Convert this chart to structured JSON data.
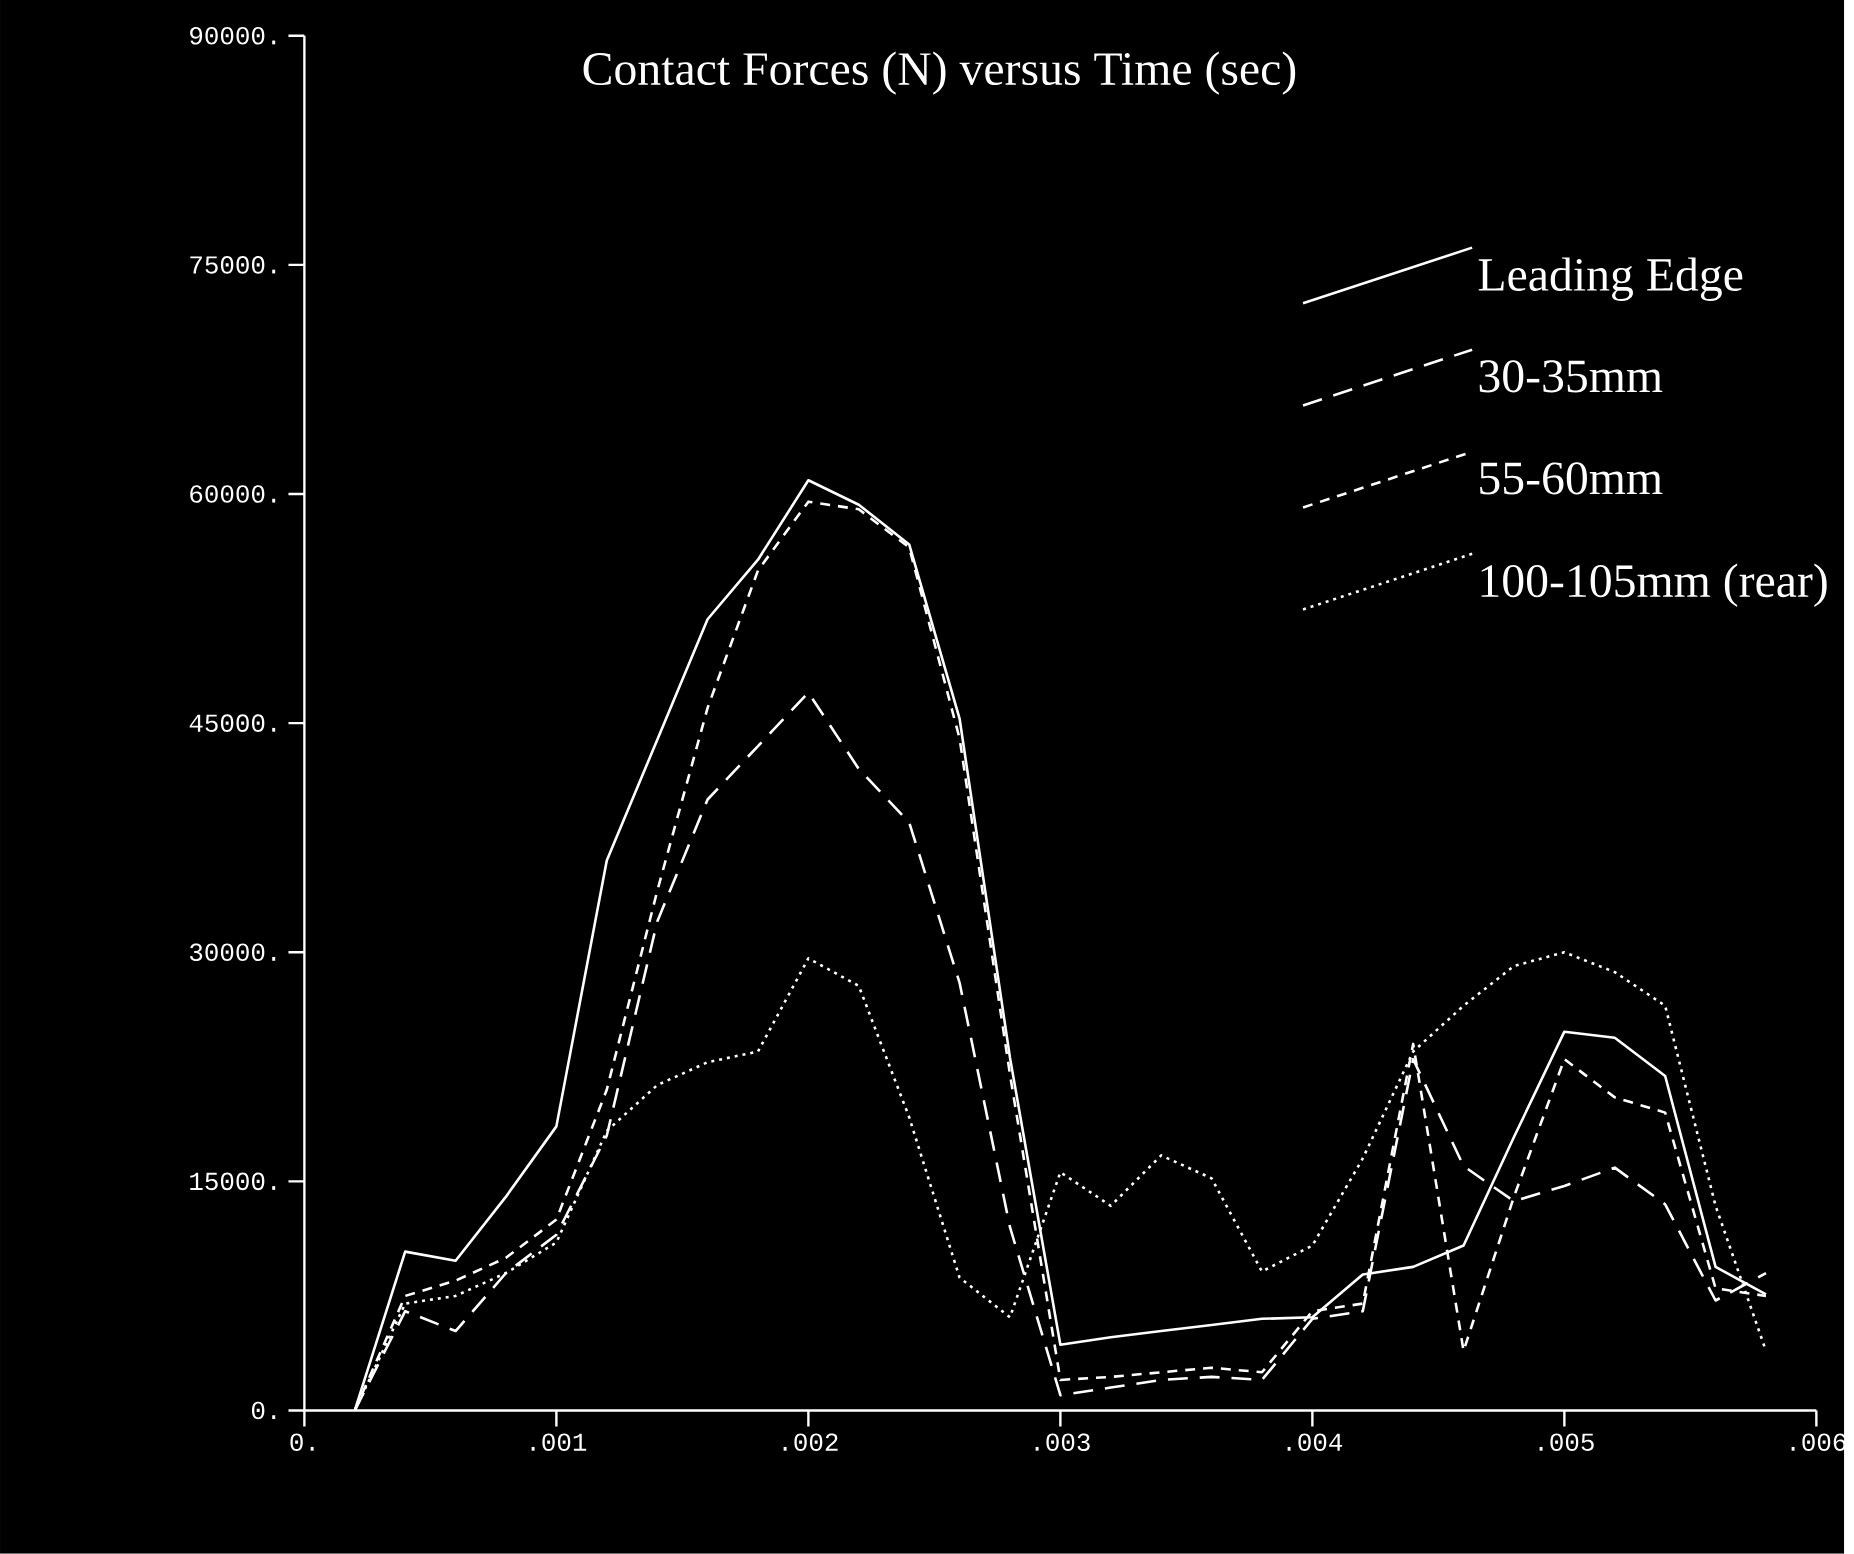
{
  "chart_data": {
    "type": "line",
    "title": "Contact Forces (N) versus Time (sec)",
    "x": [
      0.0002,
      0.0004,
      0.0006,
      0.0008,
      0.001,
      0.0012,
      0.0014,
      0.0016,
      0.0018,
      0.002,
      0.0022,
      0.0024,
      0.0026,
      0.0028,
      0.003,
      0.0032,
      0.0034,
      0.0036,
      0.0038,
      0.004,
      0.0042,
      0.0044,
      0.0046,
      0.0048,
      0.005,
      0.0052,
      0.0054,
      0.0056,
      0.0058
    ],
    "series": [
      {
        "name": "Leading Edge",
        "color": "#ffffff",
        "line_style": "solid",
        "values": [
          0,
          10400,
          9800,
          14000,
          18600,
          36000,
          43900,
          51800,
          55700,
          60900,
          59300,
          56700,
          45300,
          23100,
          4300,
          4800,
          5200,
          5600,
          6000,
          6100,
          8900,
          9400,
          10800,
          17900,
          24800,
          24400,
          21900,
          9400,
          7600
        ]
      },
      {
        "name": "30-35mm",
        "color": "#ffffff",
        "line_style": "dashed",
        "values": [
          0,
          6500,
          5200,
          9000,
          11500,
          18000,
          32000,
          40000,
          43500,
          47000,
          42000,
          38500,
          28000,
          12000,
          1000,
          1500,
          2000,
          2200,
          2000,
          6000,
          6500,
          23000,
          16000,
          13700,
          14700,
          15900,
          13500,
          7200,
          9000
        ]
      },
      {
        "name": "55-60mm",
        "color": "#ffffff",
        "line_style": "dashed",
        "values": [
          0,
          7500,
          8500,
          10000,
          12500,
          21000,
          34000,
          46000,
          55000,
          59500,
          59000,
          56500,
          44000,
          22000,
          2000,
          2200,
          2500,
          2800,
          2500,
          6500,
          7000,
          24000,
          3900,
          14000,
          23000,
          20500,
          19500,
          8000,
          7500
        ]
      },
      {
        "name": "100-105mm (rear)",
        "color": "#ffffff",
        "line_style": "dotted",
        "values": [
          0,
          7000,
          7500,
          9000,
          11000,
          18300,
          21300,
          22800,
          23500,
          29600,
          27800,
          19200,
          8700,
          6100,
          15600,
          13400,
          16700,
          15200,
          9100,
          10800,
          16500,
          23500,
          26500,
          29100,
          30000,
          28700,
          26500,
          13400,
          3900
        ]
      }
    ],
    "xlim": [
      0,
      0.006
    ],
    "ylim": [
      0,
      90000
    ],
    "xticks": [
      {
        "value": 0,
        "label": "0."
      },
      {
        "value": 0.001,
        "label": ".001"
      },
      {
        "value": 0.002,
        "label": ".002"
      },
      {
        "value": 0.003,
        "label": ".003"
      },
      {
        "value": 0.004,
        "label": ".004"
      },
      {
        "value": 0.005,
        "label": ".005"
      },
      {
        "value": 0.006,
        "label": ".006"
      }
    ],
    "yticks": [
      {
        "value": 0,
        "label": "0."
      },
      {
        "value": 15000,
        "label": "15000."
      },
      {
        "value": 30000,
        "label": "30000."
      },
      {
        "value": 45000,
        "label": "45000."
      },
      {
        "value": 60000,
        "label": "60000."
      },
      {
        "value": 75000,
        "label": "75000."
      },
      {
        "value": 90000,
        "label": "90000."
      }
    ],
    "grid": false,
    "legend": "top right"
  }
}
